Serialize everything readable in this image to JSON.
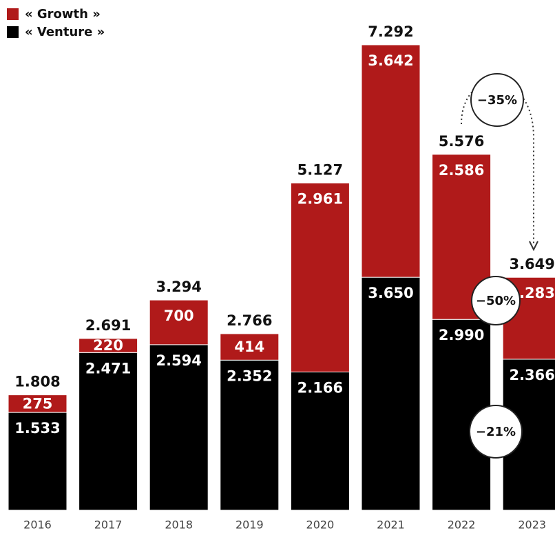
{
  "chart_data": {
    "type": "stacked-bar",
    "categories": [
      "2016",
      "2017",
      "2018",
      "2019",
      "2020",
      "2021",
      "2022",
      "2023"
    ],
    "series": [
      {
        "name": "« Venture »",
        "color": "#000000",
        "values": [
          1533,
          2471,
          2594,
          2352,
          2166,
          3650,
          2990,
          2366
        ],
        "value_labels": [
          "1.533",
          "2.471",
          "2.594",
          "2.352",
          "2.166",
          "3.650",
          "2.990",
          "2.366"
        ]
      },
      {
        "name": "« Growth »",
        "color": "#b01a1a",
        "values": [
          275,
          220,
          700,
          414,
          2961,
          3642,
          2586,
          1283
        ],
        "value_labels": [
          "275",
          "220",
          "700",
          "414",
          "2.961",
          "3.642",
          "2.586",
          "1.283"
        ]
      }
    ],
    "totals": {
      "values": [
        1808,
        2691,
        3294,
        2766,
        5127,
        7292,
        5576,
        3649
      ],
      "value_labels": [
        "1.808",
        "2.691",
        "3.294",
        "2.766",
        "5.127",
        "7.292",
        "5.576",
        "3.649"
      ]
    },
    "annotations": [
      "−35%",
      "−50%",
      "−21%"
    ]
  }
}
